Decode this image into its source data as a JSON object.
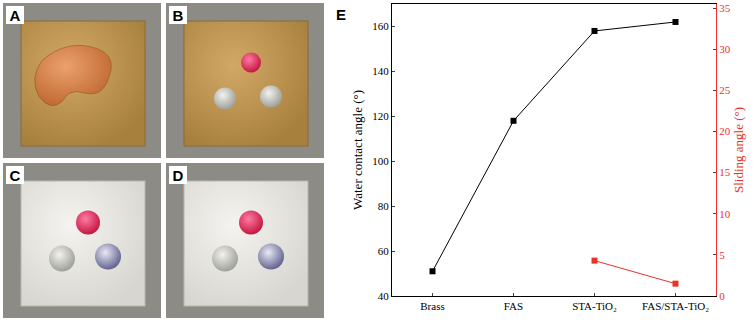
{
  "panel_labels": [
    "A",
    "B",
    "C",
    "D"
  ],
  "chart_data": {
    "type": "line",
    "annotations": [
      "E"
    ],
    "categories": [
      "Brass",
      "FAS",
      "STA-TiO₂",
      "FAS/STA-TiO₂"
    ],
    "y_label": "Water contact angle (°)",
    "y2_label": "Sliding angle (°)",
    "ylim": [
      40,
      170
    ],
    "yticks": [
      40,
      60,
      80,
      100,
      120,
      140,
      160
    ],
    "y2lim": [
      0,
      35.5
    ],
    "y2ticks": [
      0,
      5,
      10,
      15,
      20,
      25,
      30,
      35
    ],
    "series": [
      {
        "color": "#000000",
        "marker": "square",
        "values": [
          51,
          118,
          158,
          162
        ]
      },
      {
        "color": "#e8322b",
        "marker": "square",
        "axis": "y2",
        "values": [
          null,
          null,
          4.3,
          1.5
        ]
      }
    ]
  }
}
